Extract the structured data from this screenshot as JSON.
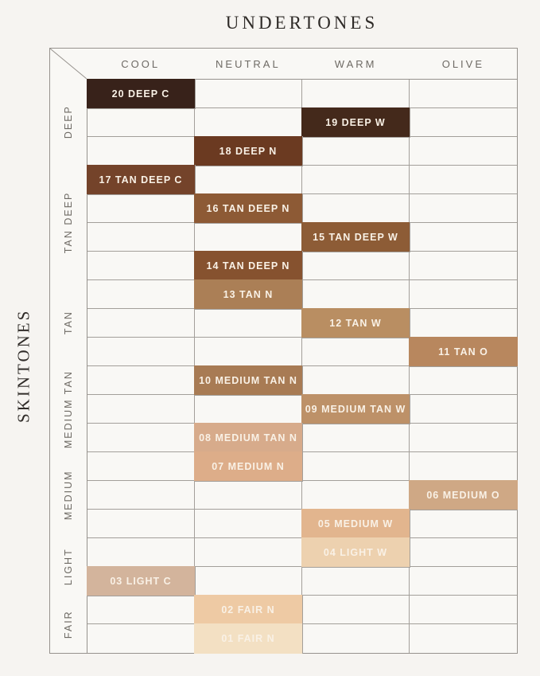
{
  "title": "UNDERTONES",
  "side_label": "SKINTONES",
  "colors": {
    "background": "#f6f4f1",
    "empty_cell": "#f9f8f5",
    "grid_line": "#96928d",
    "cell_text": "#f9f1e6",
    "header_text": "#6e6a64",
    "title_text": "#2f2b28"
  },
  "chart_data": {
    "type": "table",
    "title": "UNDERTONES",
    "ylabel": "SKINTONES",
    "columns": [
      "COOL",
      "NEUTRAL",
      "WARM",
      "OLIVE"
    ],
    "row_groups": [
      {
        "label": "DEEP",
        "row_start": 0,
        "row_count": 3
      },
      {
        "label": "TAN DEEP",
        "row_start": 3,
        "row_count": 4
      },
      {
        "label": "TAN",
        "row_start": 7,
        "row_count": 3
      },
      {
        "label": "MEDIUM TAN",
        "row_start": 10,
        "row_count": 3
      },
      {
        "label": "MEDIUM",
        "row_start": 13,
        "row_count": 3
      },
      {
        "label": "LIGHT",
        "row_start": 16,
        "row_count": 2
      },
      {
        "label": "FAIR",
        "row_start": 18,
        "row_count": 2
      }
    ],
    "shades": [
      {
        "row": 0,
        "col": 0,
        "column": "COOL",
        "label": "20 DEEP C",
        "color": "#38221a"
      },
      {
        "row": 1,
        "col": 2,
        "column": "WARM",
        "label": "19 DEEP W",
        "color": "#44291b"
      },
      {
        "row": 2,
        "col": 1,
        "column": "NEUTRAL",
        "label": "18 DEEP N",
        "color": "#6b3a21"
      },
      {
        "row": 3,
        "col": 0,
        "column": "COOL",
        "label": "17 TAN DEEP C",
        "color": "#74432a"
      },
      {
        "row": 4,
        "col": 1,
        "column": "NEUTRAL",
        "label": "16 TAN DEEP N",
        "color": "#8d5a35"
      },
      {
        "row": 5,
        "col": 2,
        "column": "WARM",
        "label": "15 TAN DEEP W",
        "color": "#8d5c36"
      },
      {
        "row": 6,
        "col": 1,
        "column": "NEUTRAL",
        "label": "14 TAN DEEP N",
        "color": "#86522f"
      },
      {
        "row": 7,
        "col": 1,
        "column": "NEUTRAL",
        "label": "13 TAN N",
        "color": "#ab7f56"
      },
      {
        "row": 8,
        "col": 2,
        "column": "WARM",
        "label": "12 TAN W",
        "color": "#b98e62"
      },
      {
        "row": 9,
        "col": 3,
        "column": "OLIVE",
        "label": "11 TAN O",
        "color": "#b8875e"
      },
      {
        "row": 10,
        "col": 1,
        "column": "NEUTRAL",
        "label": "10 MEDIUM TAN N",
        "color": "#a87b54"
      },
      {
        "row": 11,
        "col": 2,
        "column": "WARM",
        "label": "09 MEDIUM TAN W",
        "color": "#bd9168"
      },
      {
        "row": 12,
        "col": 1,
        "column": "NEUTRAL",
        "label": "08 MEDIUM TAN N",
        "color": "#d7ab8b"
      },
      {
        "row": 13,
        "col": 1,
        "column": "NEUTRAL",
        "label": "07 MEDIUM N",
        "color": "#ddad89"
      },
      {
        "row": 14,
        "col": 3,
        "column": "OLIVE",
        "label": "06 MEDIUM O",
        "color": "#cfa885"
      },
      {
        "row": 15,
        "col": 2,
        "column": "WARM",
        "label": "05 MEDIUM W",
        "color": "#e2b58e"
      },
      {
        "row": 16,
        "col": 2,
        "column": "WARM",
        "label": "04 LIGHT W",
        "color": "#edd1af"
      },
      {
        "row": 17,
        "col": 0,
        "column": "COOL",
        "label": "03 LIGHT C",
        "color": "#d3b49c"
      },
      {
        "row": 18,
        "col": 1,
        "column": "NEUTRAL",
        "label": "02 FAIR N",
        "color": "#eecaa4"
      },
      {
        "row": 19,
        "col": 1,
        "column": "NEUTRAL",
        "label": "01 FAIR N",
        "color": "#f3e0c3"
      }
    ]
  }
}
